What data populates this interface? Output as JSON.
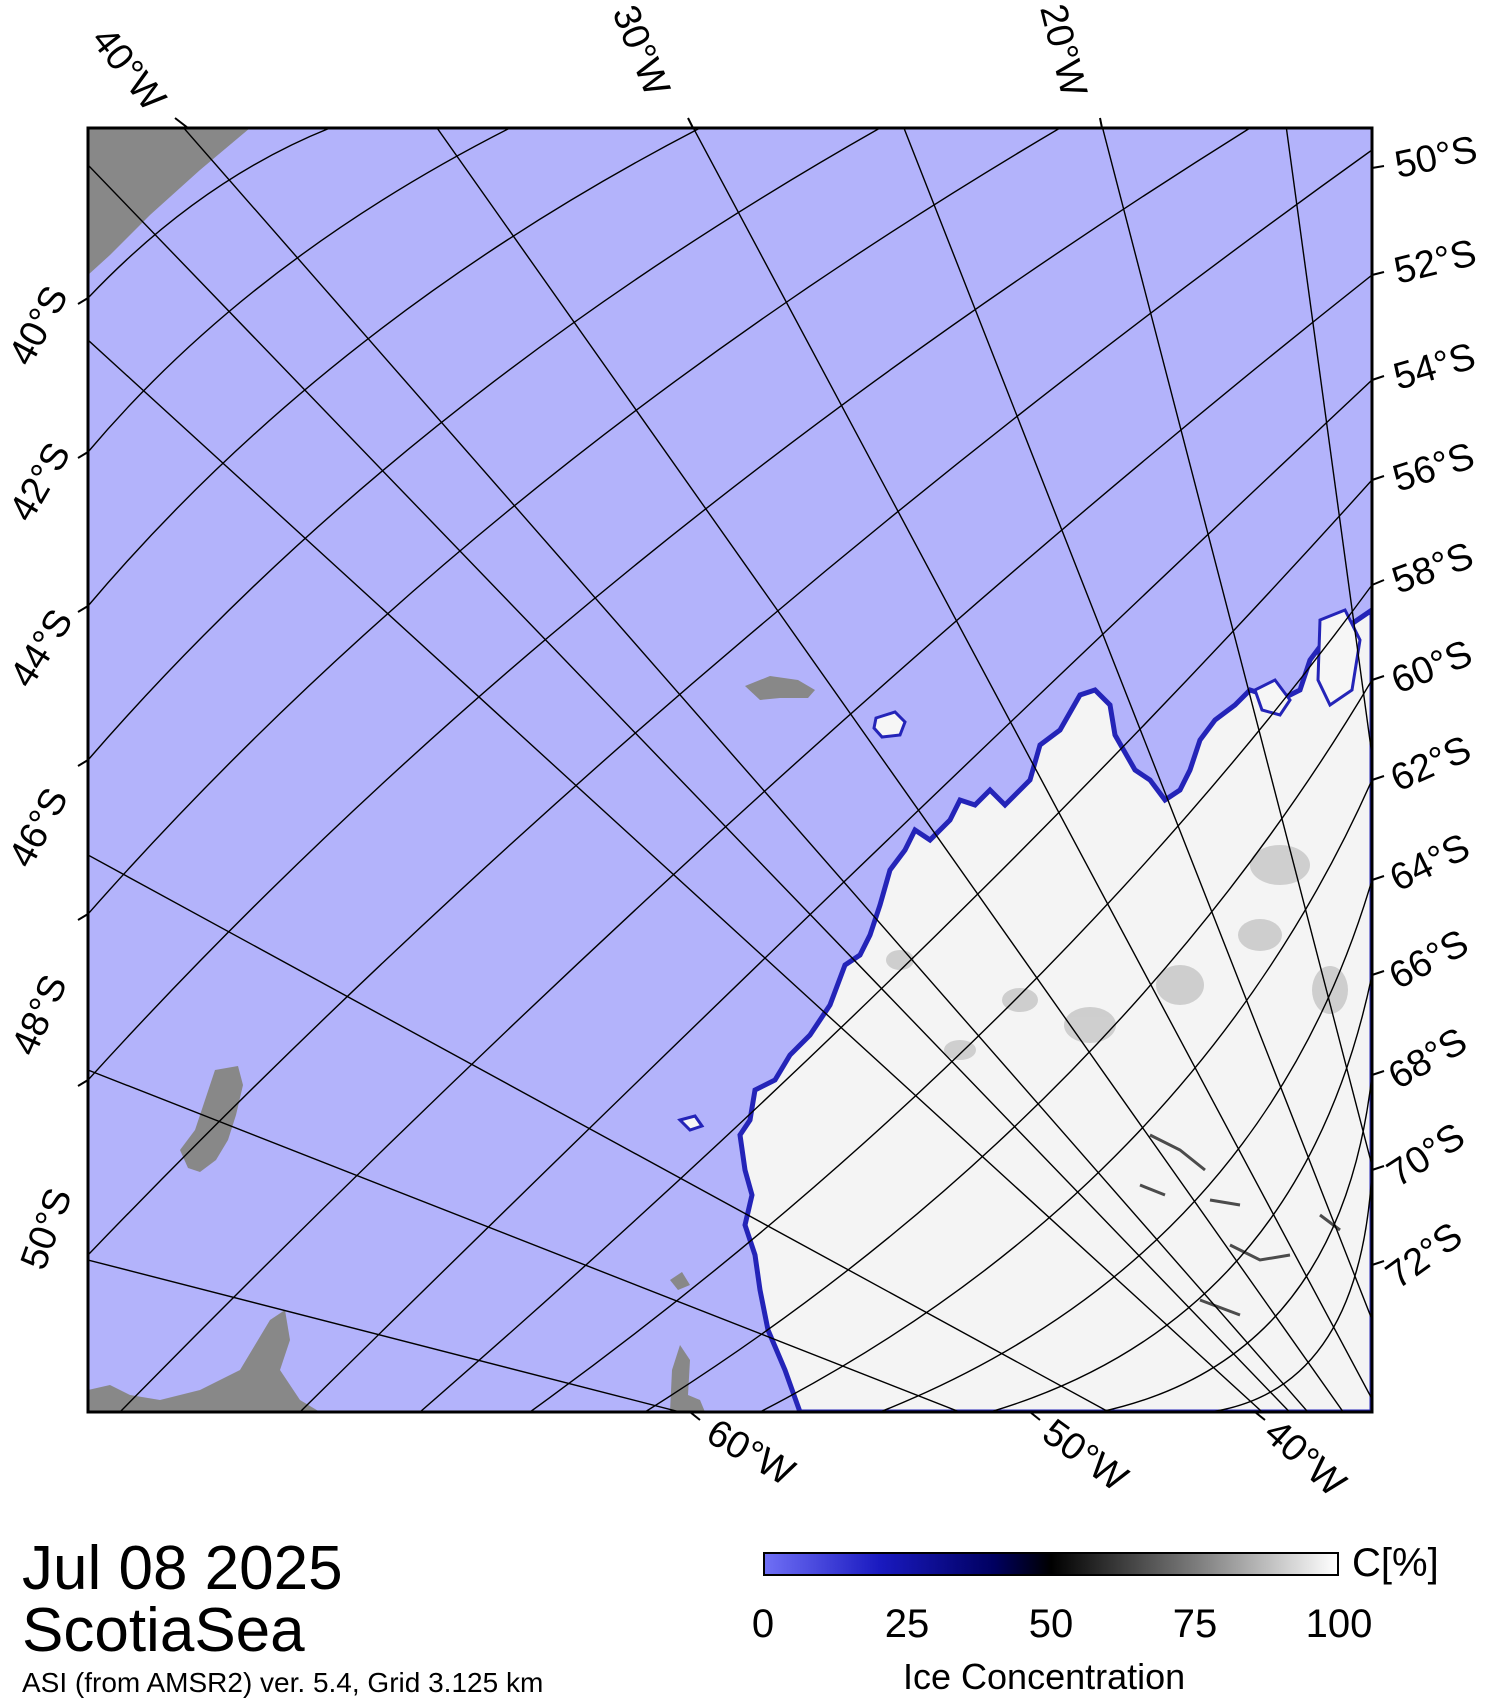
{
  "map": {
    "top_lon_labels": [
      "40°W",
      "30°W",
      "20°W"
    ],
    "right_lat_labels": [
      "50°S",
      "52°S",
      "54°S",
      "56°S",
      "58°S",
      "60°S",
      "62°S",
      "64°S",
      "66°S",
      "68°S",
      "70°S",
      "72°S"
    ],
    "left_lat_labels": [
      "40°S",
      "42°S",
      "44°S",
      "46°S",
      "48°S",
      "50°S"
    ],
    "bottom_lon_labels": [
      "60°W",
      "50°W",
      "40°W"
    ],
    "colors": {
      "ocean": "#b3b3fb",
      "land": "#888888",
      "ice": "#f6f6f6",
      "ice_edge": "#2020b0",
      "graticule": "#000000"
    }
  },
  "footer": {
    "date": "Jul 08 2025",
    "region": "ScotiaSea",
    "note": "ASI (from AMSR2) ver. 5.4,  Grid 3.125 km"
  },
  "colorbar": {
    "unit": "C[%]",
    "title": "Ice Concentration",
    "ticks": [
      {
        "value": 0,
        "label": "0"
      },
      {
        "value": 25,
        "label": "25"
      },
      {
        "value": 50,
        "label": "50"
      },
      {
        "value": 75,
        "label": "75"
      },
      {
        "value": 100,
        "label": "100"
      }
    ],
    "gradient": [
      "#6f6ff5",
      "#1a1ac0",
      "#000060",
      "#000000",
      "#606060",
      "#ffffff"
    ]
  }
}
